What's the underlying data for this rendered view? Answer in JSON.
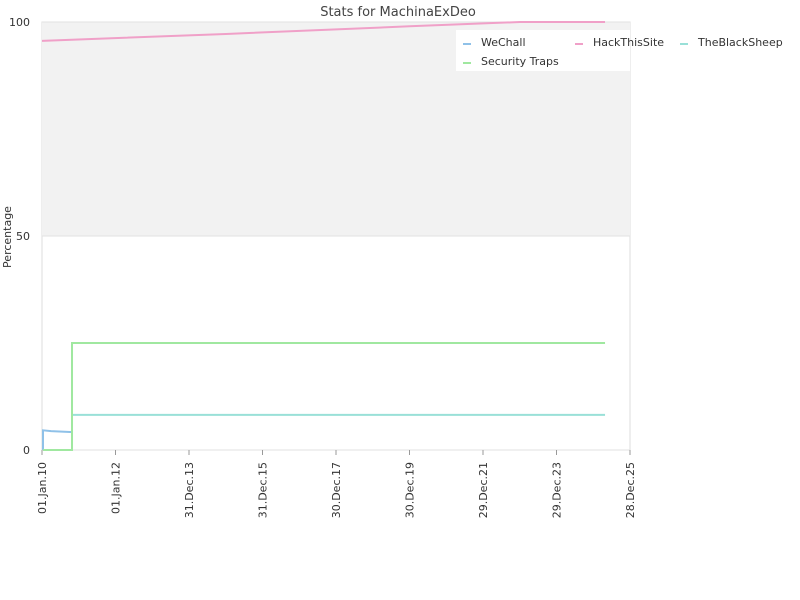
{
  "chart_data": {
    "type": "line",
    "title": "Stats for MachinaExDeo",
    "y_label": "Percentage",
    "xlim": [
      "01.Jan.10",
      "28.Dec.25"
    ],
    "xticks": [
      "01.Jan.10",
      "01.Jan.12",
      "31.Dec.13",
      "31.Dec.15",
      "30.Dec.17",
      "30.Dec.19",
      "29.Dec.21",
      "29.Dec.23",
      "28.Dec.25"
    ],
    "ylim": [
      0,
      100
    ],
    "yticks": [
      0,
      50,
      100
    ],
    "band": [
      50,
      100
    ],
    "band_color": "#f2f2f2",
    "series": [
      {
        "name": "WeChall",
        "color": "#8fc1e8",
        "x": [
          "11.Jan.10",
          "11.Jan.10",
          "01.Apr.10",
          "06.Oct.10",
          "26.Oct.10"
        ],
        "values": [
          0,
          4.6,
          4.4,
          4.2,
          4.2
        ]
      },
      {
        "name": "HackThisSite",
        "color": "#f0a0c8",
        "x": [
          "01.Jan.10",
          "01.Jan.15",
          "01.Jan.20",
          "01.Jan.23",
          "24.Apr.25"
        ],
        "values": [
          95.6,
          97.2,
          99,
          100,
          100
        ]
      },
      {
        "name": "TheBlackSheep",
        "color": "#99e0d8",
        "x": [
          "11.Jan.10",
          "26.Oct.10",
          "26.Oct.10",
          "24.Apr.25"
        ],
        "values": [
          0,
          0,
          8.2,
          8.2
        ]
      },
      {
        "name": "Security Traps",
        "color": "#a0e8a0",
        "x": [
          "11.Jan.10",
          "26.Oct.10",
          "26.Oct.10",
          "24.Apr.25"
        ],
        "values": [
          0,
          0,
          25,
          25
        ]
      }
    ]
  }
}
